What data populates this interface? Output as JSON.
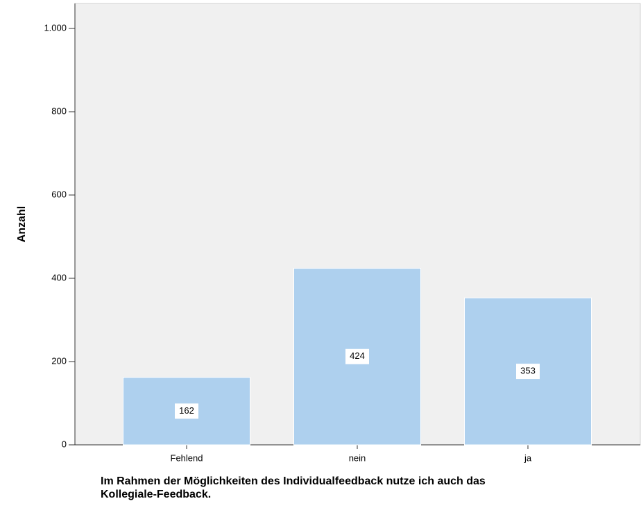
{
  "chart_data": {
    "type": "bar",
    "xlabel": [
      "Im Rahmen der Möglichkeiten des Individualfeedback nutze ich auch das",
      "Kollegiale-Feedback."
    ],
    "ylabel": "Anzahl",
    "categories": [
      "Fehlend",
      "nein",
      "ja"
    ],
    "values": [
      162,
      424,
      353
    ],
    "color": "#aed0ee",
    "ylim": [
      0,
      1060
    ],
    "yticks": [
      0,
      200,
      400,
      600,
      800,
      {
        "value": 1000,
        "label": "1.000"
      }
    ],
    "grid": false
  }
}
